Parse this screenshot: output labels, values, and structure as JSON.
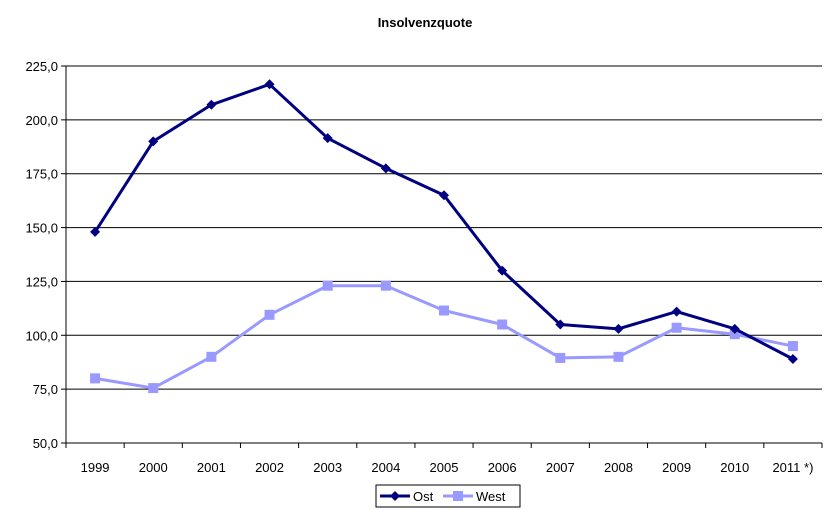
{
  "chart_data": {
    "type": "line",
    "title": "Insolvenzquote",
    "xlabel": "",
    "ylabel": "",
    "categories": [
      "1999",
      "2000",
      "2001",
      "2002",
      "2003",
      "2004",
      "2005",
      "2006",
      "2007",
      "2008",
      "2009",
      "2010",
      "2011 *)"
    ],
    "ylim": [
      50,
      225
    ],
    "yticks": [
      "50,0",
      "75,0",
      "100,0",
      "125,0",
      "150,0",
      "175,0",
      "200,0",
      "225,0"
    ],
    "grid": true,
    "legend_position": "bottom",
    "series": [
      {
        "name": "Ost",
        "color": "#000080",
        "marker": "diamond",
        "values": [
          148,
          190,
          207,
          216.5,
          191.5,
          177.5,
          165,
          130,
          105,
          103,
          111,
          103,
          89
        ]
      },
      {
        "name": "West",
        "color": "#9999ff",
        "marker": "square",
        "values": [
          80,
          75.5,
          90,
          109.5,
          123,
          123,
          111.5,
          105,
          89.5,
          90,
          103.5,
          100.5,
          95
        ]
      }
    ]
  }
}
